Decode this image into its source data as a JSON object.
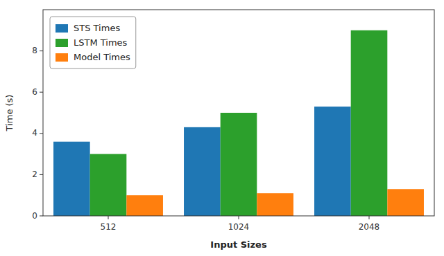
{
  "chart_data": {
    "type": "bar",
    "xlabel": "Input Sizes",
    "ylabel": "Time (s)",
    "categories": [
      "512",
      "1024",
      "2048"
    ],
    "series": [
      {
        "name": "STS Times",
        "color": "#1f77b4",
        "values": [
          3.6,
          4.3,
          5.3
        ]
      },
      {
        "name": "LSTM Times",
        "color": "#2ca02c",
        "values": [
          3.0,
          5.0,
          9.0
        ]
      },
      {
        "name": "Model Times",
        "color": "#ff7f0e",
        "values": [
          1.0,
          1.1,
          1.3
        ]
      }
    ],
    "ylim": [
      0,
      10
    ],
    "yticks": [
      0,
      2,
      4,
      6,
      8
    ],
    "grid": false,
    "legend": "upper left"
  }
}
